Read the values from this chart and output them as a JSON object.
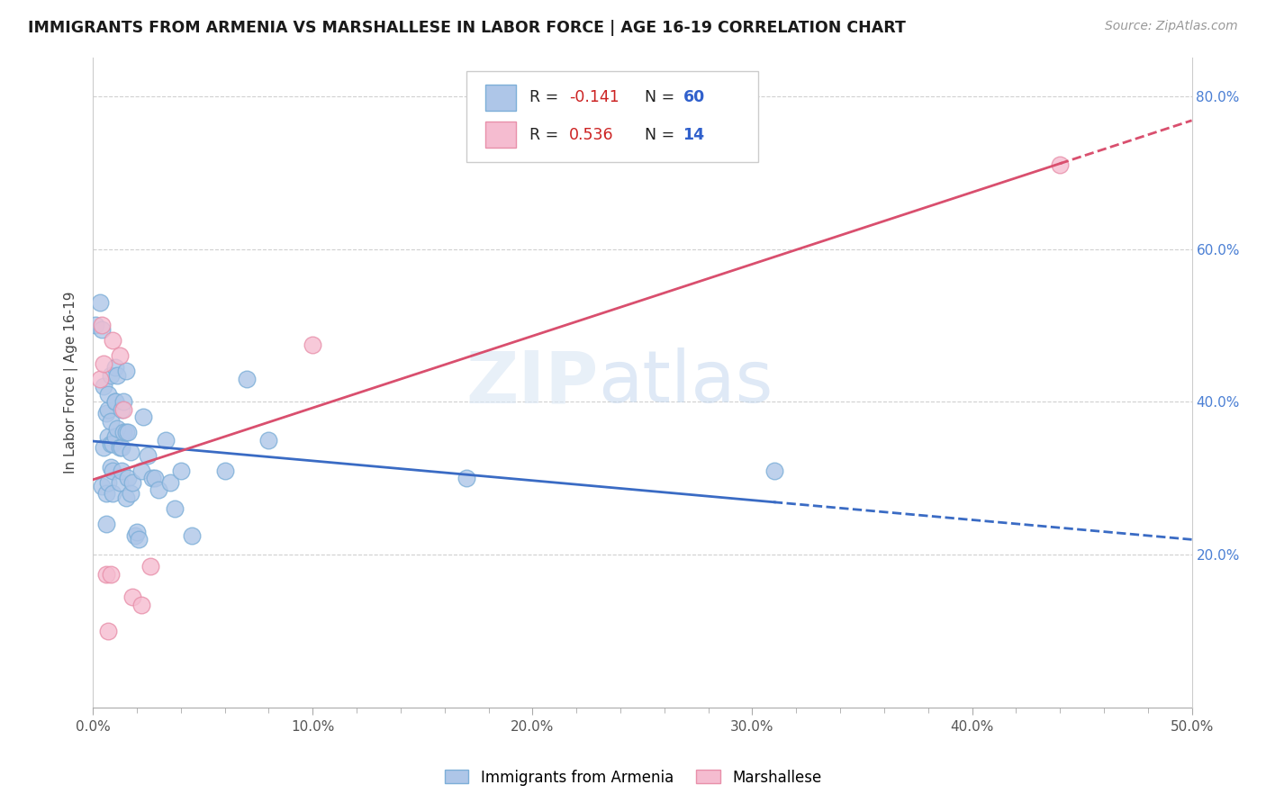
{
  "title": "IMMIGRANTS FROM ARMENIA VS MARSHALLESE IN LABOR FORCE | AGE 16-19 CORRELATION CHART",
  "source": "Source: ZipAtlas.com",
  "ylabel": "In Labor Force | Age 16-19",
  "xlim": [
    0.0,
    0.5
  ],
  "ylim": [
    0.0,
    0.85
  ],
  "xtick_labels": [
    "0.0%",
    "",
    "",
    "",
    "",
    "10.0%",
    "",
    "",
    "",
    "",
    "20.0%",
    "",
    "",
    "",
    "",
    "30.0%",
    "",
    "",
    "",
    "",
    "40.0%",
    "",
    "",
    "",
    "",
    "50.0%"
  ],
  "xtick_values": [
    0.0,
    0.02,
    0.04,
    0.06,
    0.08,
    0.1,
    0.12,
    0.14,
    0.16,
    0.18,
    0.2,
    0.22,
    0.24,
    0.26,
    0.28,
    0.3,
    0.32,
    0.34,
    0.36,
    0.38,
    0.4,
    0.42,
    0.44,
    0.46,
    0.48,
    0.5
  ],
  "xtick_major_labels": [
    "0.0%",
    "10.0%",
    "20.0%",
    "30.0%",
    "40.0%",
    "50.0%"
  ],
  "xtick_major_values": [
    0.0,
    0.1,
    0.2,
    0.3,
    0.4,
    0.5
  ],
  "ytick_labels": [
    "20.0%",
    "40.0%",
    "60.0%",
    "80.0%"
  ],
  "ytick_values": [
    0.2,
    0.4,
    0.6,
    0.8
  ],
  "armenia_color": "#aec6e8",
  "armenia_edge": "#7dafd8",
  "marshallese_color": "#f5bcd0",
  "marshallese_edge": "#e890aa",
  "armenia_R": "-0.141",
  "armenia_N": "60",
  "marshallese_R": "0.536",
  "marshallese_N": "14",
  "armenia_line_color": "#3a6bc4",
  "marshallese_line_color": "#d94f6e",
  "watermark_zip": "ZIP",
  "watermark_atlas": "atlas",
  "armenia_x": [
    0.001,
    0.003,
    0.004,
    0.004,
    0.005,
    0.005,
    0.006,
    0.006,
    0.006,
    0.007,
    0.007,
    0.007,
    0.007,
    0.008,
    0.008,
    0.008,
    0.008,
    0.009,
    0.009,
    0.009,
    0.01,
    0.01,
    0.01,
    0.01,
    0.011,
    0.011,
    0.012,
    0.012,
    0.013,
    0.013,
    0.013,
    0.014,
    0.014,
    0.015,
    0.015,
    0.015,
    0.016,
    0.016,
    0.017,
    0.017,
    0.018,
    0.019,
    0.02,
    0.021,
    0.022,
    0.023,
    0.025,
    0.027,
    0.028,
    0.03,
    0.033,
    0.035,
    0.037,
    0.04,
    0.045,
    0.06,
    0.07,
    0.08,
    0.17,
    0.31
  ],
  "armenia_y": [
    0.5,
    0.53,
    0.495,
    0.29,
    0.42,
    0.34,
    0.385,
    0.28,
    0.24,
    0.39,
    0.355,
    0.41,
    0.295,
    0.435,
    0.375,
    0.315,
    0.345,
    0.28,
    0.345,
    0.31,
    0.4,
    0.355,
    0.4,
    0.445,
    0.365,
    0.435,
    0.34,
    0.295,
    0.34,
    0.31,
    0.39,
    0.4,
    0.36,
    0.44,
    0.36,
    0.275,
    0.3,
    0.36,
    0.335,
    0.28,
    0.295,
    0.225,
    0.23,
    0.22,
    0.31,
    0.38,
    0.33,
    0.3,
    0.3,
    0.285,
    0.35,
    0.295,
    0.26,
    0.31,
    0.225,
    0.31,
    0.43,
    0.35,
    0.3,
    0.31
  ],
  "marshallese_x": [
    0.003,
    0.004,
    0.005,
    0.006,
    0.007,
    0.008,
    0.009,
    0.012,
    0.014,
    0.018,
    0.022,
    0.026,
    0.1,
    0.44
  ],
  "marshallese_y": [
    0.43,
    0.5,
    0.45,
    0.175,
    0.1,
    0.175,
    0.48,
    0.46,
    0.39,
    0.145,
    0.135,
    0.185,
    0.475,
    0.71
  ]
}
